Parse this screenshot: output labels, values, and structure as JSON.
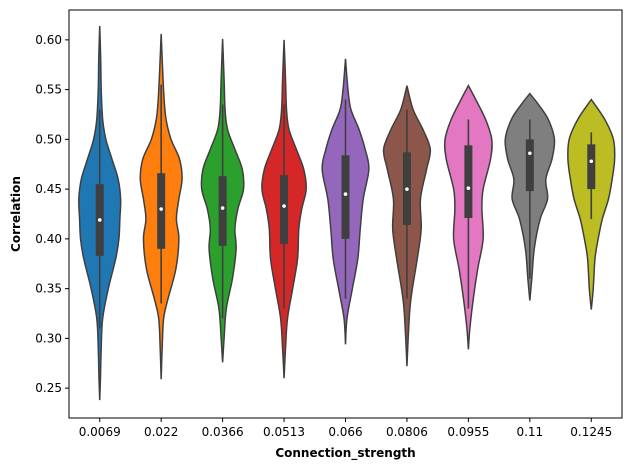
{
  "chart_data": {
    "type": "violin",
    "title": "",
    "xlabel": "Connection_strength",
    "ylabel": "Correlation",
    "ylim": [
      0.22,
      0.63
    ],
    "yticks": [
      0.25,
      0.3,
      0.35,
      0.4,
      0.45,
      0.5,
      0.55,
      0.6
    ],
    "ytick_labels": [
      "0.25",
      "0.30",
      "0.35",
      "0.40",
      "0.45",
      "0.50",
      "0.55",
      "0.60"
    ],
    "grid": false,
    "legend": "none",
    "categories": [
      "0.0069",
      "0.022",
      "0.0366",
      "0.0513",
      "0.066",
      "0.0806",
      "0.0955",
      "0.11",
      "0.1245"
    ],
    "violins": [
      {
        "category": "0.0069",
        "color": "#1f77b4",
        "min": 0.238,
        "max": 0.614,
        "q1": 0.383,
        "median": 0.419,
        "q3": 0.455,
        "whisker_low": 0.31,
        "whisker_high": 0.53,
        "density": [
          [
            0.238,
            0.0
          ],
          [
            0.26,
            0.03
          ],
          [
            0.29,
            0.06
          ],
          [
            0.32,
            0.12
          ],
          [
            0.35,
            0.35
          ],
          [
            0.38,
            0.65
          ],
          [
            0.4,
            0.78
          ],
          [
            0.42,
            0.82
          ],
          [
            0.44,
            0.85
          ],
          [
            0.46,
            0.75
          ],
          [
            0.48,
            0.5
          ],
          [
            0.5,
            0.25
          ],
          [
            0.52,
            0.12
          ],
          [
            0.55,
            0.06
          ],
          [
            0.58,
            0.04
          ],
          [
            0.614,
            0.0
          ]
        ]
      },
      {
        "category": "0.022",
        "color": "#ff7f0e",
        "min": 0.259,
        "max": 0.606,
        "q1": 0.39,
        "median": 0.43,
        "q3": 0.466,
        "whisker_low": 0.335,
        "whisker_high": 0.555,
        "density": [
          [
            0.259,
            0.0
          ],
          [
            0.29,
            0.04
          ],
          [
            0.32,
            0.1
          ],
          [
            0.34,
            0.28
          ],
          [
            0.37,
            0.6
          ],
          [
            0.4,
            0.72
          ],
          [
            0.42,
            0.62
          ],
          [
            0.44,
            0.72
          ],
          [
            0.46,
            0.85
          ],
          [
            0.48,
            0.75
          ],
          [
            0.5,
            0.4
          ],
          [
            0.52,
            0.2
          ],
          [
            0.54,
            0.12
          ],
          [
            0.57,
            0.06
          ],
          [
            0.606,
            0.0
          ]
        ]
      },
      {
        "category": "0.0366",
        "color": "#2ca02c",
        "min": 0.276,
        "max": 0.601,
        "q1": 0.393,
        "median": 0.431,
        "q3": 0.463,
        "whisker_low": 0.32,
        "whisker_high": 0.535,
        "density": [
          [
            0.276,
            0.0
          ],
          [
            0.3,
            0.06
          ],
          [
            0.33,
            0.15
          ],
          [
            0.36,
            0.4
          ],
          [
            0.39,
            0.55
          ],
          [
            0.41,
            0.5
          ],
          [
            0.43,
            0.62
          ],
          [
            0.45,
            0.85
          ],
          [
            0.47,
            0.8
          ],
          [
            0.49,
            0.5
          ],
          [
            0.51,
            0.2
          ],
          [
            0.53,
            0.1
          ],
          [
            0.56,
            0.06
          ],
          [
            0.601,
            0.0
          ]
        ]
      },
      {
        "category": "0.0513",
        "color": "#d62728",
        "min": 0.26,
        "max": 0.6,
        "q1": 0.395,
        "median": 0.433,
        "q3": 0.464,
        "whisker_low": 0.33,
        "whisker_high": 0.535,
        "density": [
          [
            0.26,
            0.0
          ],
          [
            0.29,
            0.06
          ],
          [
            0.32,
            0.14
          ],
          [
            0.35,
            0.35
          ],
          [
            0.38,
            0.55
          ],
          [
            0.41,
            0.6
          ],
          [
            0.43,
            0.72
          ],
          [
            0.45,
            0.9
          ],
          [
            0.47,
            0.8
          ],
          [
            0.49,
            0.5
          ],
          [
            0.51,
            0.2
          ],
          [
            0.53,
            0.1
          ],
          [
            0.56,
            0.06
          ],
          [
            0.6,
            0.0
          ]
        ]
      },
      {
        "category": "0.066",
        "color": "#9467bd",
        "min": 0.294,
        "max": 0.581,
        "q1": 0.4,
        "median": 0.445,
        "q3": 0.484,
        "whisker_low": 0.34,
        "whisker_high": 0.54,
        "density": [
          [
            0.294,
            0.0
          ],
          [
            0.32,
            0.06
          ],
          [
            0.35,
            0.28
          ],
          [
            0.38,
            0.5
          ],
          [
            0.41,
            0.6
          ],
          [
            0.44,
            0.72
          ],
          [
            0.47,
            0.95
          ],
          [
            0.49,
            0.8
          ],
          [
            0.51,
            0.55
          ],
          [
            0.53,
            0.22
          ],
          [
            0.55,
            0.1
          ],
          [
            0.581,
            0.0
          ]
        ]
      },
      {
        "category": "0.0806",
        "color": "#8c564b",
        "min": 0.272,
        "max": 0.554,
        "q1": 0.414,
        "median": 0.45,
        "q3": 0.487,
        "whisker_low": 0.34,
        "whisker_high": 0.53,
        "density": [
          [
            0.272,
            0.0
          ],
          [
            0.3,
            0.05
          ],
          [
            0.33,
            0.12
          ],
          [
            0.35,
            0.22
          ],
          [
            0.38,
            0.42
          ],
          [
            0.41,
            0.58
          ],
          [
            0.44,
            0.55
          ],
          [
            0.47,
            0.8
          ],
          [
            0.49,
            0.95
          ],
          [
            0.51,
            0.65
          ],
          [
            0.53,
            0.25
          ],
          [
            0.554,
            0.0
          ]
        ]
      },
      {
        "category": "0.0955",
        "color": "#e377c2",
        "min": 0.289,
        "max": 0.554,
        "q1": 0.421,
        "median": 0.451,
        "q3": 0.494,
        "whisker_low": 0.33,
        "whisker_high": 0.52,
        "density": [
          [
            0.289,
            0.0
          ],
          [
            0.31,
            0.06
          ],
          [
            0.34,
            0.2
          ],
          [
            0.37,
            0.38
          ],
          [
            0.4,
            0.6
          ],
          [
            0.43,
            0.55
          ],
          [
            0.45,
            0.6
          ],
          [
            0.48,
            0.9
          ],
          [
            0.5,
            0.95
          ],
          [
            0.52,
            0.7
          ],
          [
            0.54,
            0.3
          ],
          [
            0.554,
            0.0
          ]
        ]
      },
      {
        "category": "0.11",
        "color": "#7f7f7f",
        "min": 0.338,
        "max": 0.546,
        "q1": 0.448,
        "median": 0.486,
        "q3": 0.5,
        "whisker_low": 0.36,
        "whisker_high": 0.52,
        "density": [
          [
            0.338,
            0.0
          ],
          [
            0.36,
            0.08
          ],
          [
            0.39,
            0.18
          ],
          [
            0.42,
            0.42
          ],
          [
            0.44,
            0.72
          ],
          [
            0.46,
            0.65
          ],
          [
            0.48,
            0.9
          ],
          [
            0.5,
            1.0
          ],
          [
            0.52,
            0.75
          ],
          [
            0.535,
            0.35
          ],
          [
            0.546,
            0.0
          ]
        ]
      },
      {
        "category": "0.1245",
        "color": "#bcbd22",
        "min": 0.329,
        "max": 0.54,
        "q1": 0.45,
        "median": 0.478,
        "q3": 0.495,
        "whisker_low": 0.42,
        "whisker_high": 0.507,
        "density": [
          [
            0.329,
            0.0
          ],
          [
            0.35,
            0.08
          ],
          [
            0.38,
            0.15
          ],
          [
            0.4,
            0.28
          ],
          [
            0.42,
            0.45
          ],
          [
            0.44,
            0.7
          ],
          [
            0.46,
            0.85
          ],
          [
            0.48,
            0.95
          ],
          [
            0.5,
            0.9
          ],
          [
            0.52,
            0.55
          ],
          [
            0.54,
            0.0
          ]
        ]
      }
    ]
  }
}
